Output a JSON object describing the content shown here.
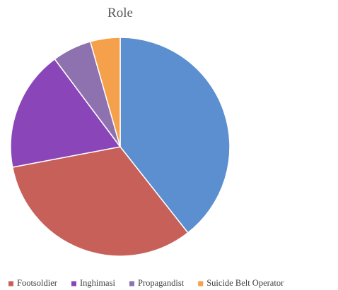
{
  "chart_data": {
    "type": "pie",
    "title": "Role",
    "categories": [
      null,
      "Footsoldier",
      "Inghimasi",
      "Propagandist",
      "Suicide Belt Operator"
    ],
    "values": [
      39.4,
      32.6,
      17.8,
      5.8,
      4.4
    ],
    "colors": [
      "#5b8fcf",
      "#c8605a",
      "#8a45b8",
      "#8e72b0",
      "#f5a04a"
    ],
    "legend": "bottom"
  }
}
